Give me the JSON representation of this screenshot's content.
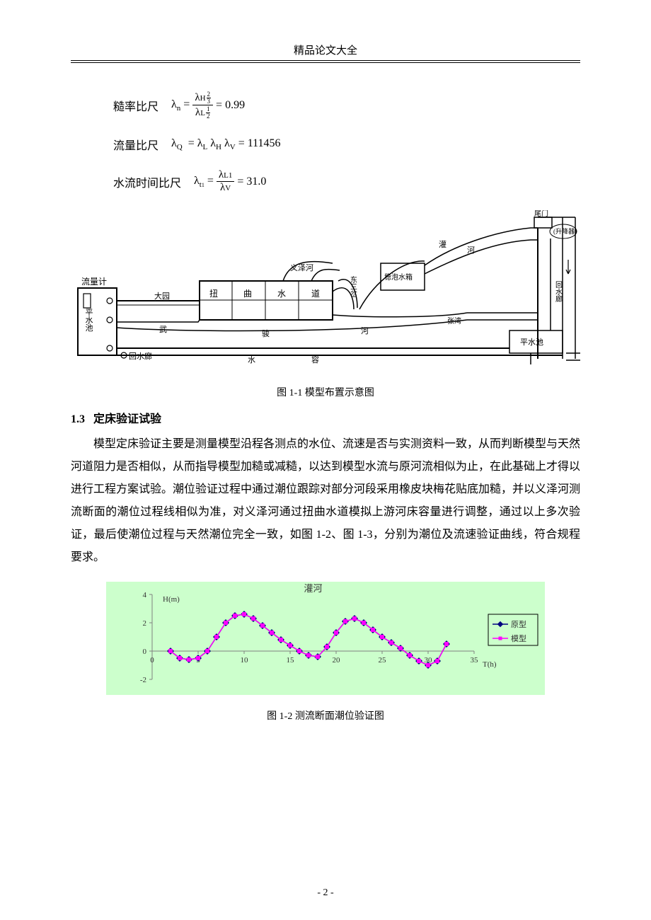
{
  "header": {
    "title": "精品论文大全"
  },
  "formulas": {
    "f1": {
      "label": "糙率比尺",
      "eq_lhs": "λ",
      "eq_sub": "n",
      "eq_rhs_val": "0.99"
    },
    "f2": {
      "label": "流量比尺",
      "eq_lhs": "λ",
      "eq_sub": "Q",
      "rhs": "= λL λH λV = 111456",
      "val": "111456"
    },
    "f3": {
      "label": "水流时间比尺",
      "eq_lhs": "λ",
      "eq_sub": "t1",
      "val": "31.0"
    }
  },
  "diagram": {
    "caption": "图 1-1 模型布置示意图",
    "labels": {
      "flowmeter": "流量计",
      "pingshuichi_l": "平水池",
      "huishuiku_l": "回水廊",
      "huishuiku_b": "回水廊",
      "dayuan": "大园",
      "niu": "扭",
      "qu": "曲",
      "shui": "水",
      "dao": "道",
      "wu": "武",
      "hou": "骏",
      "he1": "河",
      "shui2": "水",
      "rong": "容",
      "yizehe": "义泽河",
      "dongsancha": "东三岔",
      "wenbo": "稳泡水箱",
      "guanhe": "灌",
      "he2": "河",
      "zhangwan": "张湾",
      "weimen": "尾门",
      "shengjiang": "(升降器)",
      "pingshuichi_r": "平水池",
      "huishuilang_r": "回水廊"
    },
    "stroke_color": "#000000",
    "background_color": "#ffffff"
  },
  "section": {
    "number": "1.3",
    "title": "定床验证试验",
    "body": "模型定床验证主要是测量模型沿程各测点的水位、流速是否与实测资料一致，从而判断模型与天然河道阻力是否相似，从而指导模型加糙或减糙，以达到模型水流与原河流相似为止，在此基础上才得以进行工程方案试验。潮位验证过程中通过潮位跟踪对部分河段采用橡皮块梅花贴底加糙，并以义泽河测流断面的潮位过程线相似为准，对义泽河通过扭曲水道模拟上游河床容量进行调整，通过以上多次验证，最后使潮位过程与天然潮位完全一致，如图 1-2、图 1-3，分别为潮位及流速验证曲线，符合规程要求。"
  },
  "chart": {
    "type": "line-scatter",
    "title": "灌河",
    "ylabel": "H(m)",
    "xlabel": "T(h)",
    "background_color": "#ccffcc",
    "grid_color": "#808080",
    "text_color": "#333333",
    "title_fontsize": 13,
    "label_fontsize": 11,
    "tick_fontsize": 11,
    "xlim": [
      0,
      35
    ],
    "ylim": [
      -2,
      4
    ],
    "xtick_step": 5,
    "ytick_step": 2,
    "xticks": [
      0,
      5,
      10,
      15,
      20,
      25,
      30,
      35
    ],
    "yticks": [
      -2,
      0,
      2,
      4
    ],
    "series": [
      {
        "name": "原型",
        "color": "#000080",
        "marker": "diamond",
        "marker_size": 6,
        "line_width": 1.5,
        "x": [
          2,
          3,
          4,
          5,
          6,
          7,
          8,
          9,
          10,
          11,
          12,
          13,
          14,
          15,
          16,
          17,
          18,
          19,
          20,
          21,
          22,
          23,
          24,
          25,
          26,
          27,
          28,
          29,
          30,
          31,
          32
        ],
        "y": [
          0.0,
          -0.5,
          -0.6,
          -0.5,
          0.0,
          1.0,
          2.0,
          2.5,
          2.6,
          2.3,
          1.8,
          1.3,
          0.8,
          0.4,
          0.0,
          -0.3,
          -0.4,
          0.3,
          1.3,
          2.1,
          2.3,
          2.0,
          1.5,
          1.0,
          0.6,
          0.2,
          -0.3,
          -0.7,
          -1.0,
          -0.7,
          0.5
        ]
      },
      {
        "name": "模型",
        "color": "#ff00ff",
        "marker": "square",
        "marker_size": 5,
        "line_width": 1.5,
        "x": [
          2,
          3,
          4,
          5,
          6,
          7,
          8,
          9,
          10,
          11,
          12,
          13,
          14,
          15,
          16,
          17,
          18,
          19,
          20,
          21,
          22,
          23,
          24,
          25,
          26,
          27,
          28,
          29,
          30,
          31,
          32
        ],
        "y": [
          0.0,
          -0.5,
          -0.6,
          -0.5,
          0.0,
          1.0,
          2.0,
          2.5,
          2.6,
          2.3,
          1.8,
          1.3,
          0.8,
          0.4,
          0.0,
          -0.3,
          -0.4,
          0.3,
          1.3,
          2.1,
          2.3,
          2.0,
          1.5,
          1.0,
          0.6,
          0.2,
          -0.3,
          -0.7,
          -1.0,
          -0.7,
          0.5
        ]
      }
    ],
    "legend": {
      "position": "right",
      "border_color": "#000000",
      "background_color": "#ccffcc"
    },
    "caption": "图 1-2  测流断面潮位验证图"
  },
  "page_number": "- 2 -"
}
